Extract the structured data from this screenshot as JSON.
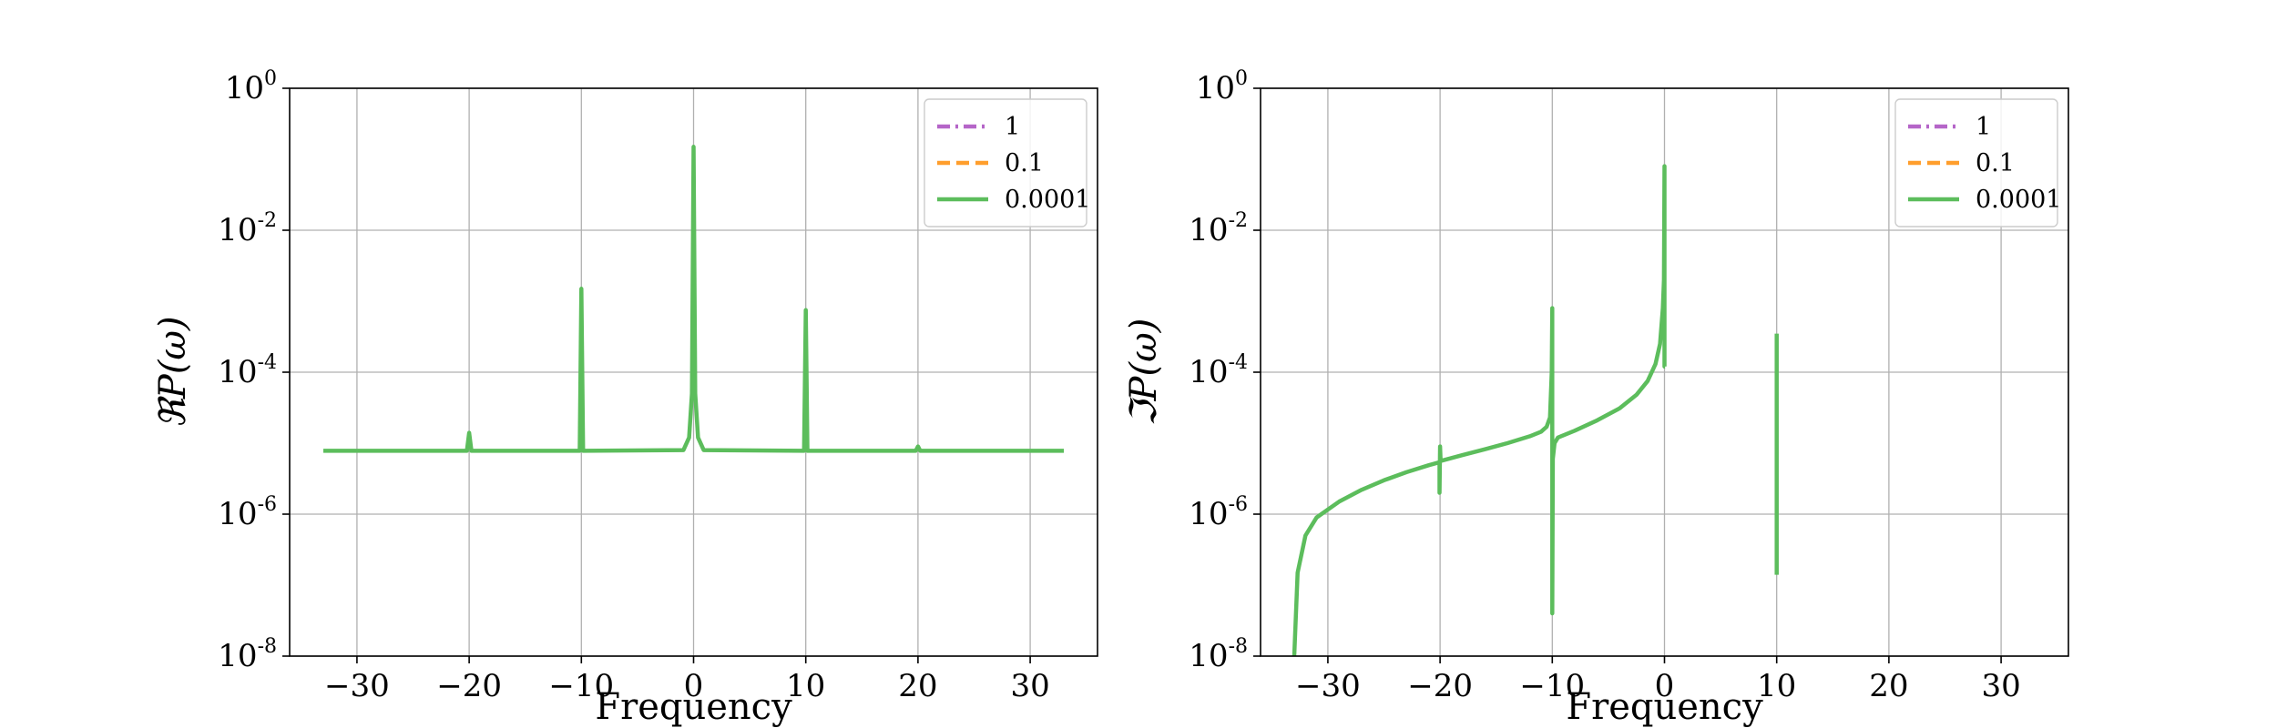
{
  "chart_data": [
    {
      "type": "line",
      "xlabel": "Frequency",
      "ylabel": "ℜP(ω)",
      "xlim": [
        -36,
        36
      ],
      "ylim": [
        1e-08,
        1
      ],
      "yscale": "log",
      "grid": true,
      "legend_position": "top-right",
      "x_ticks": [
        "−30",
        "−20",
        "−10",
        "0",
        "10",
        "20",
        "30"
      ],
      "y_ticks": [
        {
          "base": "10",
          "exp": "0"
        },
        {
          "base": "10",
          "exp": "-2"
        },
        {
          "base": "10",
          "exp": "-4"
        },
        {
          "base": "10",
          "exp": "-6"
        },
        {
          "base": "10",
          "exp": "-8"
        }
      ],
      "series": [
        {
          "name": "1",
          "color": "#b565c8",
          "style": "dashdot",
          "points": []
        },
        {
          "name": "0.1",
          "color": "#ff9e2c",
          "style": "dashed",
          "points": []
        },
        {
          "name": "0.0001",
          "color": "#5cbd5c",
          "style": "solid",
          "points": [
            [
              -33,
              7.8e-06
            ],
            [
              -20.2,
              7.8e-06
            ],
            [
              -20,
              1.4e-05
            ],
            [
              -19.8,
              7.8e-06
            ],
            [
              -10.15,
              7.8e-06
            ],
            [
              -10,
              0.0015
            ],
            [
              -9.85,
              7.8e-06
            ],
            [
              -0.9,
              8e-06
            ],
            [
              -0.4,
              1.2e-05
            ],
            [
              -0.15,
              5e-05
            ],
            [
              0,
              0.15
            ],
            [
              0.15,
              5e-05
            ],
            [
              0.4,
              1.2e-05
            ],
            [
              0.9,
              8e-06
            ],
            [
              9.85,
              7.8e-06
            ],
            [
              10,
              0.00075
            ],
            [
              10.15,
              7.8e-06
            ],
            [
              19.8,
              7.8e-06
            ],
            [
              20,
              9e-06
            ],
            [
              20.2,
              7.8e-06
            ],
            [
              33,
              7.8e-06
            ]
          ]
        }
      ]
    },
    {
      "type": "line",
      "xlabel": "Frequency",
      "ylabel": "ℑP(ω)",
      "xlim": [
        -36,
        36
      ],
      "ylim": [
        1e-08,
        1
      ],
      "yscale": "log",
      "grid": true,
      "legend_position": "top-right",
      "x_ticks": [
        "−30",
        "−20",
        "−10",
        "0",
        "10",
        "20",
        "30"
      ],
      "y_ticks": [
        {
          "base": "10",
          "exp": "0"
        },
        {
          "base": "10",
          "exp": "-2"
        },
        {
          "base": "10",
          "exp": "-4"
        },
        {
          "base": "10",
          "exp": "-6"
        },
        {
          "base": "10",
          "exp": "-8"
        }
      ],
      "series": [
        {
          "name": "1",
          "color": "#b565c8",
          "style": "dashdot",
          "points": []
        },
        {
          "name": "0.1",
          "color": "#ff9e2c",
          "style": "dashed",
          "points": []
        },
        {
          "name": "0.0001",
          "color": "#5cbd5c",
          "style": "solid",
          "points": [
            [
              -33,
              1e-08
            ],
            [
              -32.7,
              1.5e-07
            ],
            [
              -32,
              5e-07
            ],
            [
              -31,
              9e-07
            ],
            [
              -29,
              1.5e-06
            ],
            [
              -27,
              2.2e-06
            ],
            [
              -25,
              3e-06
            ],
            [
              -23,
              3.9e-06
            ],
            [
              -21,
              4.9e-06
            ],
            [
              -20.05,
              5.4e-06
            ],
            [
              -20.05,
              2e-06
            ],
            [
              -20,
              9e-06
            ],
            [
              -19.95,
              5.6e-06
            ],
            [
              -18,
              6.8e-06
            ],
            [
              -16,
              8.2e-06
            ],
            [
              -14,
              1e-05
            ],
            [
              -12,
              1.25e-05
            ],
            [
              -11,
              1.45e-05
            ],
            [
              -10.5,
              1.7e-05
            ],
            [
              -10.2,
              2.3e-05
            ],
            [
              -10.05,
              0.0001
            ],
            [
              -10,
              0.0008
            ],
            [
              -10,
              4e-08
            ],
            [
              -9.95,
              6e-06
            ],
            [
              -9.8,
              1e-05
            ],
            [
              -9.5,
              1.2e-05
            ],
            [
              -8,
              1.5e-05
            ],
            [
              -6,
              2.1e-05
            ],
            [
              -4,
              3.1e-05
            ],
            [
              -2.5,
              4.8e-05
            ],
            [
              -1.5,
              7.5e-05
            ],
            [
              -0.8,
              0.00013
            ],
            [
              -0.4,
              0.00025
            ],
            [
              -0.15,
              0.0008
            ],
            [
              -0.05,
              0.002
            ],
            [
              0,
              0.08
            ],
            [
              0,
              0.00012
            ],
            [
              0.05,
              0.00012
            ]
          ]
        },
        {
          "name": "",
          "color": "#5cbd5c",
          "style": "solid",
          "points": [
            [
              10,
              0.00035
            ],
            [
              10,
              1.4e-07
            ]
          ]
        }
      ]
    }
  ]
}
